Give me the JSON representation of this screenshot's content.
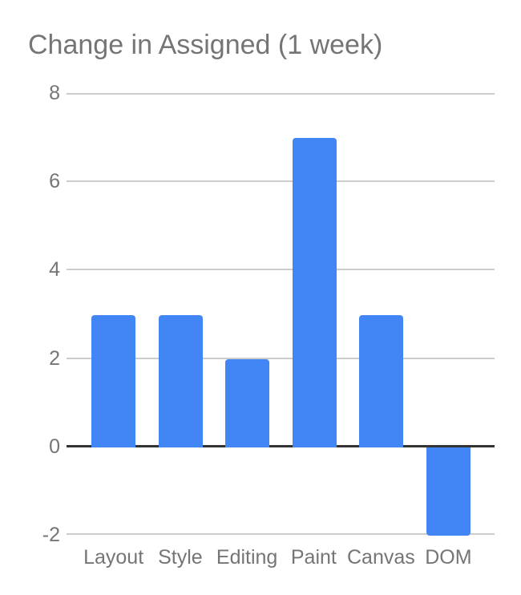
{
  "chart_data": {
    "type": "bar",
    "title": "Change in Assigned (1 week)",
    "categories": [
      "Layout",
      "Style",
      "Editing",
      "Paint",
      "Canvas",
      "DOM"
    ],
    "values": [
      3,
      3,
      2,
      7,
      3,
      -2
    ],
    "yticks": [
      8,
      6,
      4,
      2,
      0,
      -2
    ],
    "ylim": [
      -2,
      8
    ],
    "xlabel": "",
    "ylabel": "",
    "grid": true,
    "legend": "none",
    "bar_color": "#4285f4"
  },
  "colors": {
    "background": "#ffffff",
    "title_text": "#757575",
    "axis_text": "#757575",
    "gridline": "#cccccc",
    "zero_line": "#333333",
    "bar": "#4285f4"
  }
}
